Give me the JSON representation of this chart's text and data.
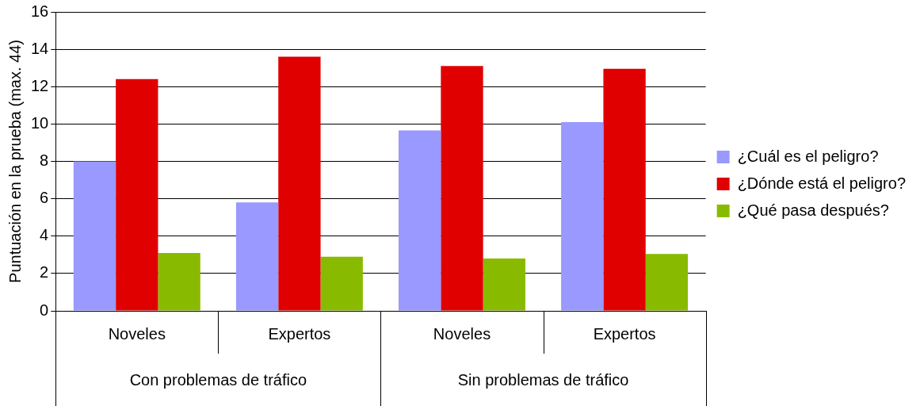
{
  "chart_data": {
    "type": "bar",
    "ylabel": "Puntuación en la prueba (max. 44)",
    "categories": [
      "Noveles",
      "Expertos",
      "Noveles",
      "Expertos"
    ],
    "annotations": [
      "Con problemas de tráfico",
      "Sin problemas de tráfico"
    ],
    "series": [
      {
        "name": "¿Cuál es el peligro?",
        "color": "#9999ff",
        "values": [
          8.0,
          5.8,
          9.65,
          10.1
        ]
      },
      {
        "name": "¿Dónde está el peligro?",
        "color": "#e00000",
        "values": [
          12.4,
          13.6,
          13.1,
          12.95
        ]
      },
      {
        "name": "¿Qué pasa después?",
        "color": "#88bb00",
        "values": [
          3.1,
          2.9,
          2.8,
          3.05
        ]
      }
    ],
    "ylim": [
      0,
      16
    ],
    "yticks": [
      0,
      2,
      4,
      6,
      8,
      10,
      12,
      14,
      16
    ],
    "grid": "y",
    "legend": "right"
  }
}
